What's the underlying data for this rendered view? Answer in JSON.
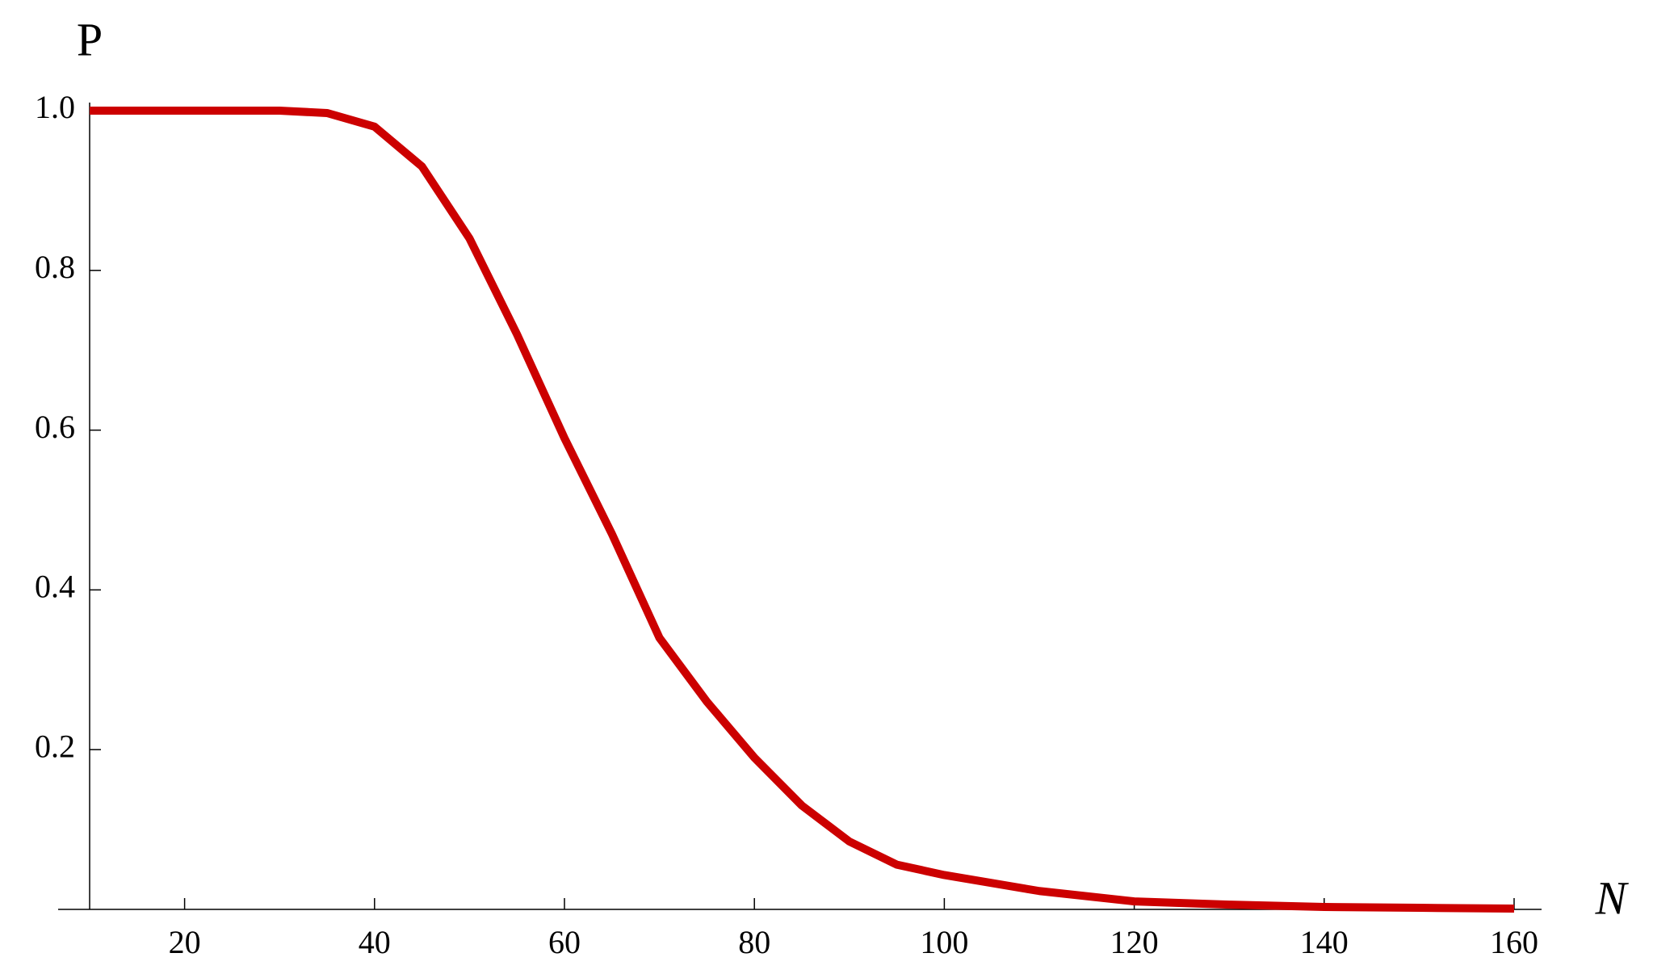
{
  "chart_data": {
    "type": "line",
    "x_label": "N",
    "y_label": "P",
    "x": [
      10,
      20,
      30,
      35,
      40,
      45,
      50,
      55,
      60,
      65,
      70,
      75,
      80,
      85,
      90,
      95,
      100,
      110,
      120,
      130,
      140,
      150,
      160
    ],
    "series": [
      {
        "color": "#cc0000",
        "values": [
          1,
          1,
          1,
          0.997,
          0.98,
          0.93,
          0.84,
          0.72,
          0.59,
          0.47,
          0.34,
          0.26,
          0.19,
          0.13,
          0.085,
          0.056,
          0.043,
          0.023,
          0.01,
          0.006,
          0.003,
          0.002,
          0.001
        ]
      }
    ],
    "xlim": [
      10,
      160
    ],
    "ylim": [
      0,
      1
    ],
    "xticks": [
      20,
      40,
      60,
      80,
      100,
      120,
      140,
      160
    ],
    "yticks": [
      0.2,
      0.4,
      0.6,
      0.8,
      {
        "value": 1,
        "label": "1.0"
      }
    ]
  }
}
